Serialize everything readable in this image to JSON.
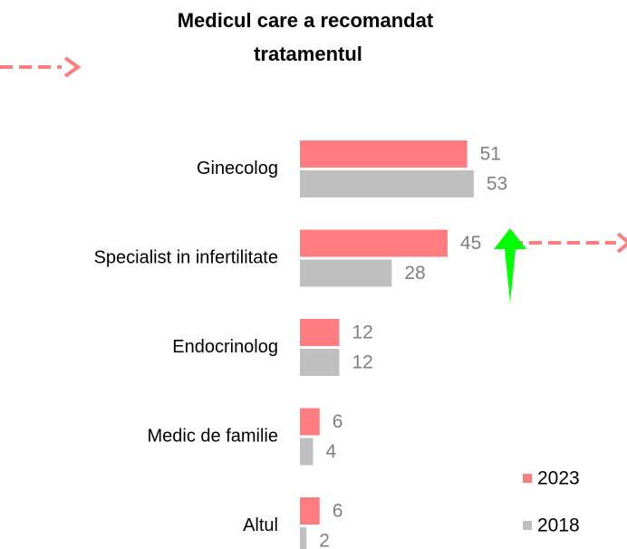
{
  "chart_data": {
    "type": "barh",
    "title": "Medicul care a recomandat tratamentul",
    "categories": [
      "Ginecolog",
      "Specialist in infertilitate",
      "Endocrinolog",
      "Medic de familie",
      "Altul"
    ],
    "series": [
      {
        "name": "2023",
        "color": "#ff7c80",
        "values": [
          51,
          45,
          12,
          6,
          6
        ]
      },
      {
        "name": "2018",
        "color": "#bfbfbf",
        "values": [
          53,
          28,
          12,
          4,
          2
        ]
      }
    ],
    "legend": "bottom-right"
  }
}
